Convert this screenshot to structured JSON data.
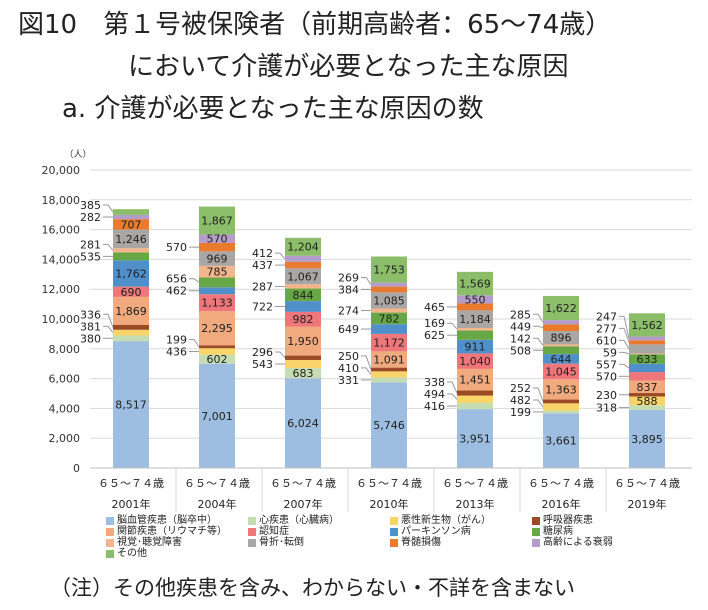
{
  "titles": {
    "line1": "図10　第１号被保険者（前期高齢者：65～74歳）",
    "line2": "において介護が必要となった主な原因",
    "line3": "a.  介護が必要となった主な原因の数"
  },
  "note": "（注）その他疾患を含み、わからない・不詳を含まない",
  "chart_data": {
    "type": "bar",
    "stacked": true,
    "unit_label": "（人）",
    "categories": [
      "2001年",
      "2004年",
      "2007年",
      "2010年",
      "2013年",
      "2016年",
      "2019年"
    ],
    "category_sublabel": "６５～７４歳",
    "ylim": [
      0,
      20000
    ],
    "yticks": [
      "0",
      "2,000",
      "4,000",
      "6,000",
      "8,000",
      "10,000",
      "12,000",
      "14,000",
      "16,000",
      "18,000",
      "20,000"
    ],
    "grid": true,
    "legend": "bottom",
    "series": [
      {
        "name": "脳血管疾患（脳卒中）",
        "color": "#9dbee0",
        "values": [
          8517,
          7001,
          6024,
          5746,
          3951,
          3661,
          3895
        ]
      },
      {
        "name": "心疾患（心臓病）",
        "color": "#c6ddb3",
        "values": [
          380,
          602,
          683,
          331,
          416,
          199,
          318
        ]
      },
      {
        "name": "悪性新生物（がん）",
        "color": "#f8d46a",
        "values": [
          381,
          436,
          543,
          410,
          494,
          482,
          588
        ]
      },
      {
        "name": "呼吸器疾患",
        "color": "#9b4a25",
        "values": [
          336,
          199,
          296,
          250,
          338,
          252,
          230
        ]
      },
      {
        "name": "関節疾患（リウマチ等）",
        "color": "#f0aa7e",
        "values": [
          1869,
          2295,
          1950,
          1091,
          1451,
          1363,
          837
        ]
      },
      {
        "name": "認知症",
        "color": "#ef777b",
        "values": [
          690,
          1133,
          982,
          1172,
          1040,
          1045,
          570
        ]
      },
      {
        "name": "パーキンソン病",
        "color": "#4f8fca",
        "values": [
          1762,
          462,
          722,
          649,
          911,
          644,
          557
        ]
      },
      {
        "name": "糖尿病",
        "color": "#67a746",
        "values": [
          535,
          656,
          844,
          782,
          625,
          508,
          633
        ]
      },
      {
        "name": "視覚･聴覚障害",
        "color": "#f2b58c",
        "values": [
          281,
          785,
          287,
          274,
          169,
          142,
          59
        ]
      },
      {
        "name": "骨折･転倒",
        "color": "#a9a7a5",
        "values": [
          1246,
          969,
          1067,
          1085,
          1184,
          896,
          610
        ]
      },
      {
        "name": "脊髄損傷",
        "color": "#e97a2e",
        "values": [
          707,
          570,
          437,
          384,
          465,
          449,
          277
        ]
      },
      {
        "name": "高齢による衰弱",
        "color": "#b49dcb",
        "values": [
          282,
          570,
          412,
          269,
          550,
          285,
          247
        ]
      },
      {
        "name": "その他",
        "color": "#8cbe69",
        "values": [
          385,
          1867,
          1204,
          1753,
          1569,
          1622,
          1562
        ]
      }
    ]
  }
}
